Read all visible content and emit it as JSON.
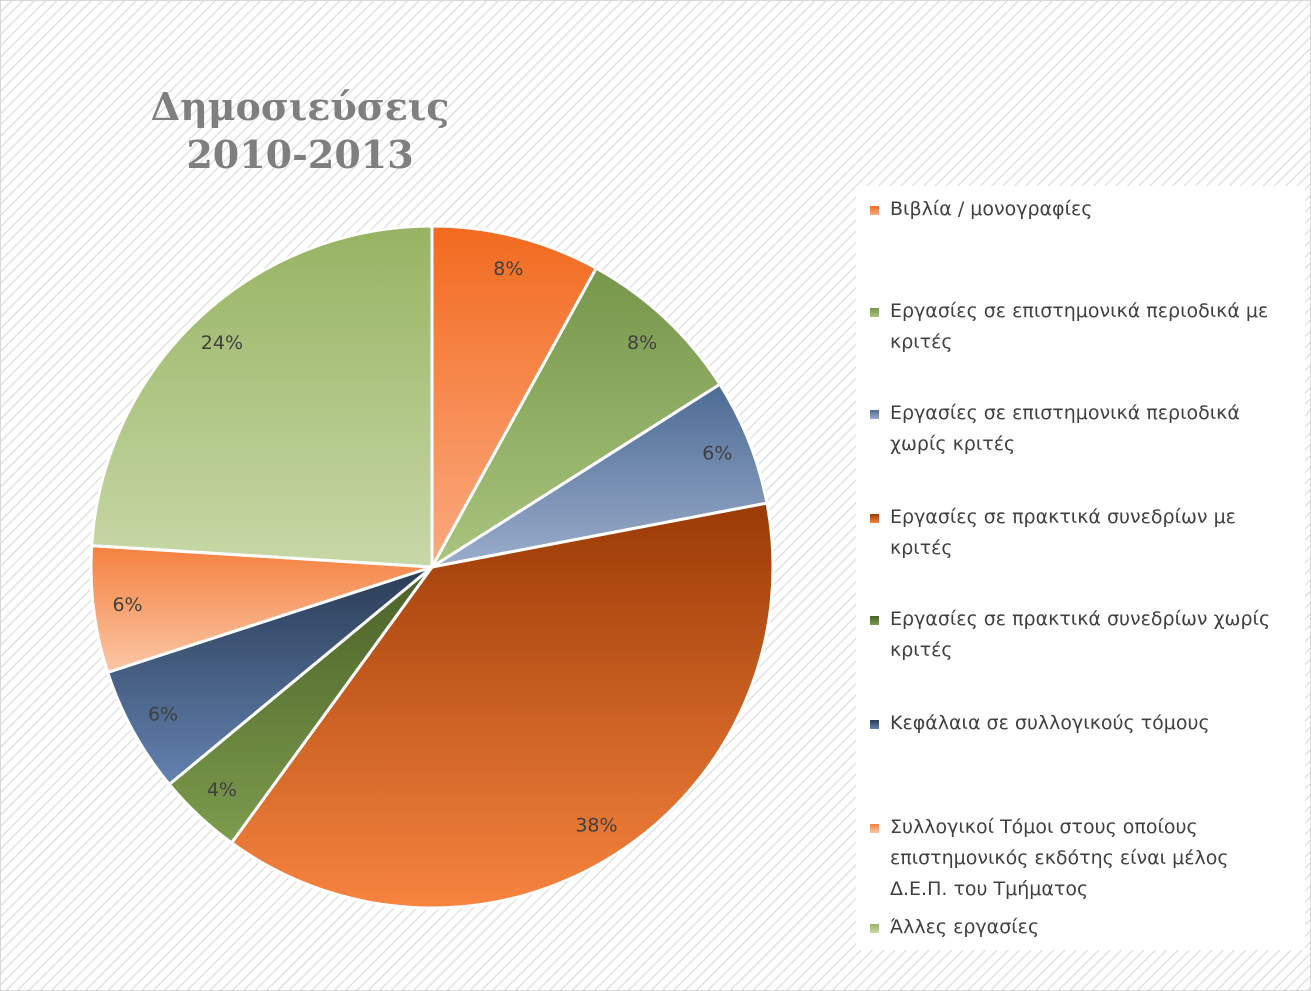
{
  "chart_data": {
    "type": "pie",
    "title": "Δημοσιεύσεις 2010-2013",
    "categories": [
      "Βιβλία / μονογραφίες",
      "Εργασίες σε επιστημονικά περιοδικά με κριτές",
      "Εργασίες σε επιστημονικά περιοδικά χωρίς κριτές",
      "Εργασίες σε πρακτικά συνεδρίων με κριτές",
      "Εργασίες σε πρακτικά συνεδρίων χωρίς κριτές",
      "Κεφάλαια σε συλλογικούς τόμους",
      "Συλλογικοί Τόμοι στους οποίους επιστημονικός εκδότης είναι μέλος Δ.Ε.Π. του Τμήματος",
      "Άλλες εργασίες"
    ],
    "values": [
      8,
      8,
      6,
      38,
      4,
      6,
      6,
      24
    ],
    "value_labels": [
      "8%",
      "8%",
      "6%",
      "38%",
      "4%",
      "6%",
      "6%",
      "24%"
    ],
    "colors": [
      [
        "#f26a1f",
        "#fbaa80"
      ],
      [
        "#76964a",
        "#aac57e"
      ],
      [
        "#4d6b94",
        "#9aadcb"
      ],
      [
        "#9a3a05",
        "#f7843f"
      ],
      [
        "#4a6127",
        "#7d9c4d"
      ],
      [
        "#2a3c56",
        "#6382b0"
      ],
      [
        "#f5813f",
        "#fbc6a6"
      ],
      [
        "#97b363",
        "#c7d8a6"
      ]
    ],
    "legend": "right"
  }
}
